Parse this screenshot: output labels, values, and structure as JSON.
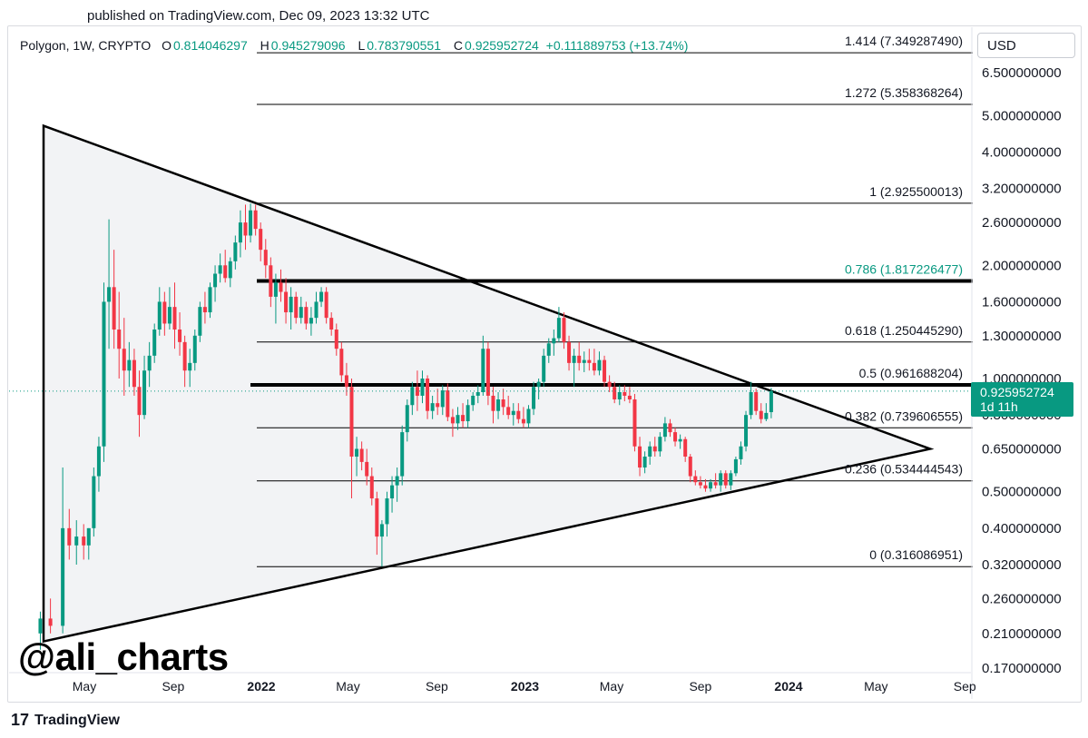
{
  "header": {
    "published": "published on TradingView.com, Dec 09, 2023 13:32 UTC"
  },
  "legend": {
    "symbol": "Polygon, 1W, CRYPTO",
    "open_label": "O",
    "open_value": "0.814046297",
    "high_label": "H",
    "high_value": "0.945279096",
    "low_label": "L",
    "low_value": "0.783790551",
    "close_label": "C",
    "close_value": "0.925952724",
    "change": "+0.111889753 (+13.74%)"
  },
  "currency_button": "USD",
  "current_price": {
    "value": "0.925952724",
    "countdown": "1d 11h"
  },
  "watermark": "@ali_charts",
  "footer": {
    "brand": "TradingView",
    "logo_glyph": "17"
  },
  "colors": {
    "up": "#089981",
    "down": "#f23645",
    "fib_highlight": "#089981",
    "triangle_fill": "#f2f3f5",
    "grid_text": "#131722"
  },
  "chart_data": {
    "type": "candlestick",
    "symbol": "Polygon, 1W, CRYPTO",
    "y_scale": "log",
    "ylim": [
      0.17,
      7.5
    ],
    "y_ticks": [
      "6.500000000",
      "5.000000000",
      "4.000000000",
      "3.200000000",
      "2.600000000",
      "2.000000000",
      "1.600000000",
      "1.300000000",
      "1.000000000",
      "0.800000000",
      "0.650000000",
      "0.500000000",
      "0.400000000",
      "0.320000000",
      "0.260000000",
      "0.210000000",
      "0.170000000"
    ],
    "x_ticks": [
      "May",
      "Sep",
      "2022",
      "May",
      "Sep",
      "2023",
      "May",
      "Sep",
      "2024",
      "May",
      "Sep"
    ],
    "x_range": [
      "2021-03",
      "2024-09"
    ],
    "fib_levels": [
      {
        "ratio": "1.414",
        "price": 7.34928749,
        "label": "1.414 (7.349287490)"
      },
      {
        "ratio": "1.272",
        "price": 5.358368264,
        "label": "1.272 (5.358368264)"
      },
      {
        "ratio": "1",
        "price": 2.925500013,
        "label": "1 (2.925500013)"
      },
      {
        "ratio": "0.786",
        "price": 1.817226477,
        "label": "0.786 (1.817226477)",
        "highlight": true
      },
      {
        "ratio": "0.618",
        "price": 1.25044529,
        "label": "0.618 (1.250445290)"
      },
      {
        "ratio": "0.5",
        "price": 0.961688204,
        "label": "0.5 (0.961688204)",
        "highlight_line": true
      },
      {
        "ratio": "0.382",
        "price": 0.739606555,
        "label": "0.382 (0.739606555)"
      },
      {
        "ratio": "0.236",
        "price": 0.534444543,
        "label": "0.236 (0.534444543)"
      },
      {
        "ratio": "0",
        "price": 0.316086951,
        "label": "0 (0.316086951)"
      }
    ],
    "triangle": {
      "apex_top": {
        "date": "2021-03",
        "price": 4.7
      },
      "apex_bottom": {
        "date": "2021-03",
        "price": 0.2
      },
      "apex_right": {
        "date": "2024-06",
        "price": 0.65
      }
    },
    "candles": [
      {
        "d": "2021-03-01",
        "o": 0.21,
        "h": 0.24,
        "l": 0.19,
        "c": 0.23
      },
      {
        "d": "2021-03-15",
        "o": 0.23,
        "h": 0.26,
        "l": 0.21,
        "c": 0.22
      },
      {
        "d": "2021-04-01",
        "o": 0.22,
        "h": 0.58,
        "l": 0.21,
        "c": 0.4
      },
      {
        "d": "2021-04-10",
        "o": 0.4,
        "h": 0.45,
        "l": 0.33,
        "c": 0.36
      },
      {
        "d": "2021-04-20",
        "o": 0.36,
        "h": 0.42,
        "l": 0.32,
        "c": 0.38
      },
      {
        "d": "2021-04-30",
        "o": 0.38,
        "h": 0.41,
        "l": 0.33,
        "c": 0.36
      },
      {
        "d": "2021-05-07",
        "o": 0.36,
        "h": 0.4,
        "l": 0.33,
        "c": 0.4
      },
      {
        "d": "2021-05-14",
        "o": 0.4,
        "h": 0.58,
        "l": 0.38,
        "c": 0.55
      },
      {
        "d": "2021-05-21",
        "o": 0.55,
        "h": 0.7,
        "l": 0.5,
        "c": 0.66
      },
      {
        "d": "2021-05-28",
        "o": 0.66,
        "h": 1.8,
        "l": 0.6,
        "c": 1.6
      },
      {
        "d": "2021-06-04",
        "o": 1.6,
        "h": 2.65,
        "l": 1.2,
        "c": 1.75
      },
      {
        "d": "2021-06-11",
        "o": 1.75,
        "h": 2.2,
        "l": 1.2,
        "c": 1.35
      },
      {
        "d": "2021-06-18",
        "o": 1.35,
        "h": 1.7,
        "l": 1.0,
        "c": 1.2
      },
      {
        "d": "2021-06-25",
        "o": 1.2,
        "h": 1.45,
        "l": 0.9,
        "c": 1.05
      },
      {
        "d": "2021-07-02",
        "o": 1.05,
        "h": 1.25,
        "l": 0.95,
        "c": 1.12
      },
      {
        "d": "2021-07-09",
        "o": 1.12,
        "h": 1.2,
        "l": 0.9,
        "c": 0.95
      },
      {
        "d": "2021-07-16",
        "o": 0.95,
        "h": 1.05,
        "l": 0.7,
        "c": 0.8
      },
      {
        "d": "2021-07-23",
        "o": 0.8,
        "h": 1.15,
        "l": 0.78,
        "c": 1.05
      },
      {
        "d": "2021-07-30",
        "o": 1.05,
        "h": 1.25,
        "l": 0.95,
        "c": 1.15
      },
      {
        "d": "2021-08-06",
        "o": 1.15,
        "h": 1.4,
        "l": 1.1,
        "c": 1.35
      },
      {
        "d": "2021-08-13",
        "o": 1.35,
        "h": 1.75,
        "l": 1.3,
        "c": 1.6
      },
      {
        "d": "2021-08-20",
        "o": 1.6,
        "h": 1.7,
        "l": 1.3,
        "c": 1.4
      },
      {
        "d": "2021-08-27",
        "o": 1.4,
        "h": 1.75,
        "l": 1.35,
        "c": 1.55
      },
      {
        "d": "2021-09-03",
        "o": 1.55,
        "h": 1.8,
        "l": 1.2,
        "c": 1.35
      },
      {
        "d": "2021-09-10",
        "o": 1.35,
        "h": 1.5,
        "l": 1.15,
        "c": 1.25
      },
      {
        "d": "2021-09-17",
        "o": 1.25,
        "h": 1.3,
        "l": 0.95,
        "c": 1.05
      },
      {
        "d": "2021-09-24",
        "o": 1.05,
        "h": 1.2,
        "l": 0.95,
        "c": 1.1
      },
      {
        "d": "2021-10-01",
        "o": 1.1,
        "h": 1.35,
        "l": 1.05,
        "c": 1.3
      },
      {
        "d": "2021-10-08",
        "o": 1.3,
        "h": 1.6,
        "l": 1.25,
        "c": 1.55
      },
      {
        "d": "2021-10-15",
        "o": 1.55,
        "h": 1.7,
        "l": 1.4,
        "c": 1.5
      },
      {
        "d": "2021-10-22",
        "o": 1.5,
        "h": 1.8,
        "l": 1.45,
        "c": 1.75
      },
      {
        "d": "2021-10-29",
        "o": 1.75,
        "h": 2.0,
        "l": 1.6,
        "c": 1.9
      },
      {
        "d": "2021-11-05",
        "o": 1.9,
        "h": 2.15,
        "l": 1.8,
        "c": 2.0
      },
      {
        "d": "2021-11-12",
        "o": 2.0,
        "h": 2.2,
        "l": 1.8,
        "c": 1.85
      },
      {
        "d": "2021-11-19",
        "o": 1.85,
        "h": 2.1,
        "l": 1.75,
        "c": 2.05
      },
      {
        "d": "2021-11-26",
        "o": 2.05,
        "h": 2.4,
        "l": 1.95,
        "c": 2.3
      },
      {
        "d": "2021-12-03",
        "o": 2.3,
        "h": 2.8,
        "l": 2.1,
        "c": 2.6
      },
      {
        "d": "2021-12-10",
        "o": 2.6,
        "h": 2.9,
        "l": 2.2,
        "c": 2.4
      },
      {
        "d": "2021-12-17",
        "o": 2.4,
        "h": 2.92,
        "l": 2.3,
        "c": 2.8
      },
      {
        "d": "2021-12-24",
        "o": 2.8,
        "h": 2.9,
        "l": 2.4,
        "c": 2.5
      },
      {
        "d": "2021-12-31",
        "o": 2.5,
        "h": 2.6,
        "l": 2.05,
        "c": 2.2
      },
      {
        "d": "2022-01-07",
        "o": 2.2,
        "h": 2.35,
        "l": 1.85,
        "c": 2.0
      },
      {
        "d": "2022-01-14",
        "o": 2.0,
        "h": 2.1,
        "l": 1.55,
        "c": 1.65
      },
      {
        "d": "2022-01-21",
        "o": 1.65,
        "h": 1.9,
        "l": 1.4,
        "c": 1.8
      },
      {
        "d": "2022-01-28",
        "o": 1.8,
        "h": 1.95,
        "l": 1.6,
        "c": 1.7
      },
      {
        "d": "2022-02-04",
        "o": 1.7,
        "h": 1.85,
        "l": 1.4,
        "c": 1.5
      },
      {
        "d": "2022-02-11",
        "o": 1.5,
        "h": 1.75,
        "l": 1.35,
        "c": 1.65
      },
      {
        "d": "2022-02-18",
        "o": 1.65,
        "h": 1.7,
        "l": 1.4,
        "c": 1.45
      },
      {
        "d": "2022-02-25",
        "o": 1.45,
        "h": 1.65,
        "l": 1.4,
        "c": 1.55
      },
      {
        "d": "2022-03-04",
        "o": 1.55,
        "h": 1.6,
        "l": 1.35,
        "c": 1.4
      },
      {
        "d": "2022-03-11",
        "o": 1.4,
        "h": 1.55,
        "l": 1.3,
        "c": 1.45
      },
      {
        "d": "2022-03-18",
        "o": 1.45,
        "h": 1.7,
        "l": 1.4,
        "c": 1.6
      },
      {
        "d": "2022-03-25",
        "o": 1.6,
        "h": 1.75,
        "l": 1.55,
        "c": 1.7
      },
      {
        "d": "2022-04-01",
        "o": 1.7,
        "h": 1.75,
        "l": 1.4,
        "c": 1.45
      },
      {
        "d": "2022-04-08",
        "o": 1.45,
        "h": 1.5,
        "l": 1.3,
        "c": 1.35
      },
      {
        "d": "2022-04-15",
        "o": 1.35,
        "h": 1.4,
        "l": 1.15,
        "c": 1.2
      },
      {
        "d": "2022-04-22",
        "o": 1.2,
        "h": 1.25,
        "l": 0.98,
        "c": 1.02
      },
      {
        "d": "2022-04-29",
        "o": 1.02,
        "h": 1.1,
        "l": 0.9,
        "c": 0.95
      },
      {
        "d": "2022-05-06",
        "o": 0.95,
        "h": 1.0,
        "l": 0.48,
        "c": 0.62
      },
      {
        "d": "2022-05-13",
        "o": 0.62,
        "h": 0.7,
        "l": 0.55,
        "c": 0.65
      },
      {
        "d": "2022-05-20",
        "o": 0.65,
        "h": 0.68,
        "l": 0.57,
        "c": 0.6
      },
      {
        "d": "2022-05-27",
        "o": 0.6,
        "h": 0.65,
        "l": 0.52,
        "c": 0.55
      },
      {
        "d": "2022-06-03",
        "o": 0.55,
        "h": 0.58,
        "l": 0.46,
        "c": 0.48
      },
      {
        "d": "2022-06-10",
        "o": 0.48,
        "h": 0.5,
        "l": 0.34,
        "c": 0.38
      },
      {
        "d": "2022-06-17",
        "o": 0.38,
        "h": 0.42,
        "l": 0.316,
        "c": 0.41
      },
      {
        "d": "2022-06-24",
        "o": 0.41,
        "h": 0.5,
        "l": 0.38,
        "c": 0.48
      },
      {
        "d": "2022-07-01",
        "o": 0.48,
        "h": 0.55,
        "l": 0.44,
        "c": 0.52
      },
      {
        "d": "2022-07-08",
        "o": 0.52,
        "h": 0.58,
        "l": 0.47,
        "c": 0.55
      },
      {
        "d": "2022-07-15",
        "o": 0.55,
        "h": 0.75,
        "l": 0.52,
        "c": 0.72
      },
      {
        "d": "2022-07-22",
        "o": 0.72,
        "h": 0.88,
        "l": 0.68,
        "c": 0.85
      },
      {
        "d": "2022-07-29",
        "o": 0.85,
        "h": 0.98,
        "l": 0.8,
        "c": 0.95
      },
      {
        "d": "2022-08-05",
        "o": 0.95,
        "h": 1.05,
        "l": 0.82,
        "c": 0.9
      },
      {
        "d": "2022-08-12",
        "o": 0.9,
        "h": 1.05,
        "l": 0.86,
        "c": 1.0
      },
      {
        "d": "2022-08-19",
        "o": 1.0,
        "h": 1.02,
        "l": 0.78,
        "c": 0.82
      },
      {
        "d": "2022-08-26",
        "o": 0.82,
        "h": 0.9,
        "l": 0.78,
        "c": 0.86
      },
      {
        "d": "2022-09-02",
        "o": 0.86,
        "h": 0.94,
        "l": 0.8,
        "c": 0.84
      },
      {
        "d": "2022-09-09",
        "o": 0.84,
        "h": 0.96,
        "l": 0.8,
        "c": 0.93
      },
      {
        "d": "2022-09-16",
        "o": 0.93,
        "h": 0.97,
        "l": 0.77,
        "c": 0.79
      },
      {
        "d": "2022-09-23",
        "o": 0.79,
        "h": 0.83,
        "l": 0.7,
        "c": 0.76
      },
      {
        "d": "2022-09-30",
        "o": 0.76,
        "h": 0.84,
        "l": 0.73,
        "c": 0.8
      },
      {
        "d": "2022-10-07",
        "o": 0.8,
        "h": 0.86,
        "l": 0.74,
        "c": 0.77
      },
      {
        "d": "2022-10-14",
        "o": 0.77,
        "h": 0.88,
        "l": 0.74,
        "c": 0.85
      },
      {
        "d": "2022-10-21",
        "o": 0.85,
        "h": 0.92,
        "l": 0.82,
        "c": 0.9
      },
      {
        "d": "2022-10-28",
        "o": 0.9,
        "h": 0.96,
        "l": 0.86,
        "c": 0.92
      },
      {
        "d": "2022-11-04",
        "o": 0.92,
        "h": 1.3,
        "l": 0.9,
        "c": 1.2
      },
      {
        "d": "2022-11-11",
        "o": 1.2,
        "h": 1.25,
        "l": 0.85,
        "c": 0.9
      },
      {
        "d": "2022-11-18",
        "o": 0.9,
        "h": 0.95,
        "l": 0.76,
        "c": 0.82
      },
      {
        "d": "2022-11-25",
        "o": 0.82,
        "h": 0.92,
        "l": 0.78,
        "c": 0.88
      },
      {
        "d": "2022-12-02",
        "o": 0.88,
        "h": 0.94,
        "l": 0.8,
        "c": 0.84
      },
      {
        "d": "2022-12-09",
        "o": 0.84,
        "h": 0.9,
        "l": 0.78,
        "c": 0.8
      },
      {
        "d": "2022-12-16",
        "o": 0.8,
        "h": 0.86,
        "l": 0.75,
        "c": 0.82
      },
      {
        "d": "2022-12-23",
        "o": 0.82,
        "h": 0.86,
        "l": 0.76,
        "c": 0.78
      },
      {
        "d": "2022-12-30",
        "o": 0.78,
        "h": 0.84,
        "l": 0.74,
        "c": 0.76
      },
      {
        "d": "2023-01-06",
        "o": 0.76,
        "h": 0.85,
        "l": 0.74,
        "c": 0.83
      },
      {
        "d": "2023-01-13",
        "o": 0.83,
        "h": 0.98,
        "l": 0.8,
        "c": 0.95
      },
      {
        "d": "2023-01-20",
        "o": 0.95,
        "h": 1.0,
        "l": 0.88,
        "c": 0.98
      },
      {
        "d": "2023-01-27",
        "o": 0.98,
        "h": 1.2,
        "l": 0.95,
        "c": 1.15
      },
      {
        "d": "2023-02-03",
        "o": 1.15,
        "h": 1.28,
        "l": 1.1,
        "c": 1.24
      },
      {
        "d": "2023-02-10",
        "o": 1.24,
        "h": 1.35,
        "l": 1.15,
        "c": 1.28
      },
      {
        "d": "2023-02-17",
        "o": 1.28,
        "h": 1.55,
        "l": 1.25,
        "c": 1.45
      },
      {
        "d": "2023-02-24",
        "o": 1.45,
        "h": 1.5,
        "l": 1.2,
        "c": 1.25
      },
      {
        "d": "2023-03-03",
        "o": 1.25,
        "h": 1.3,
        "l": 1.05,
        "c": 1.1
      },
      {
        "d": "2023-03-10",
        "o": 1.1,
        "h": 1.2,
        "l": 0.95,
        "c": 1.15
      },
      {
        "d": "2023-03-17",
        "o": 1.15,
        "h": 1.25,
        "l": 1.05,
        "c": 1.1
      },
      {
        "d": "2023-03-24",
        "o": 1.1,
        "h": 1.18,
        "l": 1.04,
        "c": 1.12
      },
      {
        "d": "2023-03-31",
        "o": 1.12,
        "h": 1.2,
        "l": 1.05,
        "c": 1.1
      },
      {
        "d": "2023-04-07",
        "o": 1.1,
        "h": 1.2,
        "l": 1.02,
        "c": 1.05
      },
      {
        "d": "2023-04-14",
        "o": 1.05,
        "h": 1.18,
        "l": 1.02,
        "c": 1.12
      },
      {
        "d": "2023-04-21",
        "o": 1.12,
        "h": 1.15,
        "l": 0.95,
        "c": 0.98
      },
      {
        "d": "2023-04-28",
        "o": 0.98,
        "h": 1.02,
        "l": 0.92,
        "c": 0.95
      },
      {
        "d": "2023-05-05",
        "o": 0.95,
        "h": 0.98,
        "l": 0.86,
        "c": 0.88
      },
      {
        "d": "2023-05-12",
        "o": 0.88,
        "h": 0.96,
        "l": 0.85,
        "c": 0.92
      },
      {
        "d": "2023-05-19",
        "o": 0.92,
        "h": 0.96,
        "l": 0.87,
        "c": 0.9
      },
      {
        "d": "2023-05-26",
        "o": 0.9,
        "h": 0.95,
        "l": 0.86,
        "c": 0.88
      },
      {
        "d": "2023-06-02",
        "o": 0.88,
        "h": 0.91,
        "l": 0.64,
        "c": 0.66
      },
      {
        "d": "2023-06-09",
        "o": 0.66,
        "h": 0.7,
        "l": 0.55,
        "c": 0.58
      },
      {
        "d": "2023-06-16",
        "o": 0.58,
        "h": 0.64,
        "l": 0.56,
        "c": 0.62
      },
      {
        "d": "2023-06-23",
        "o": 0.62,
        "h": 0.68,
        "l": 0.59,
        "c": 0.66
      },
      {
        "d": "2023-06-30",
        "o": 0.66,
        "h": 0.7,
        "l": 0.62,
        "c": 0.64
      },
      {
        "d": "2023-07-07",
        "o": 0.64,
        "h": 0.72,
        "l": 0.62,
        "c": 0.7
      },
      {
        "d": "2023-07-14",
        "o": 0.7,
        "h": 0.79,
        "l": 0.68,
        "c": 0.76
      },
      {
        "d": "2023-07-21",
        "o": 0.76,
        "h": 0.78,
        "l": 0.7,
        "c": 0.72
      },
      {
        "d": "2023-07-28",
        "o": 0.72,
        "h": 0.74,
        "l": 0.66,
        "c": 0.68
      },
      {
        "d": "2023-08-04",
        "o": 0.68,
        "h": 0.71,
        "l": 0.65,
        "c": 0.69
      },
      {
        "d": "2023-08-11",
        "o": 0.69,
        "h": 0.7,
        "l": 0.6,
        "c": 0.62
      },
      {
        "d": "2023-08-18",
        "o": 0.62,
        "h": 0.63,
        "l": 0.53,
        "c": 0.55
      },
      {
        "d": "2023-08-25",
        "o": 0.55,
        "h": 0.57,
        "l": 0.52,
        "c": 0.53
      },
      {
        "d": "2023-09-01",
        "o": 0.53,
        "h": 0.55,
        "l": 0.51,
        "c": 0.52
      },
      {
        "d": "2023-09-08",
        "o": 0.52,
        "h": 0.54,
        "l": 0.5,
        "c": 0.51
      },
      {
        "d": "2023-09-15",
        "o": 0.51,
        "h": 0.54,
        "l": 0.5,
        "c": 0.53
      },
      {
        "d": "2023-09-22",
        "o": 0.53,
        "h": 0.56,
        "l": 0.51,
        "c": 0.52
      },
      {
        "d": "2023-09-29",
        "o": 0.52,
        "h": 0.57,
        "l": 0.5,
        "c": 0.56
      },
      {
        "d": "2023-10-06",
        "o": 0.56,
        "h": 0.57,
        "l": 0.51,
        "c": 0.52
      },
      {
        "d": "2023-10-13",
        "o": 0.52,
        "h": 0.57,
        "l": 0.505,
        "c": 0.56
      },
      {
        "d": "2023-10-20",
        "o": 0.56,
        "h": 0.62,
        "l": 0.55,
        "c": 0.61
      },
      {
        "d": "2023-10-27",
        "o": 0.61,
        "h": 0.68,
        "l": 0.59,
        "c": 0.66
      },
      {
        "d": "2023-11-03",
        "o": 0.66,
        "h": 0.82,
        "l": 0.64,
        "c": 0.8
      },
      {
        "d": "2023-11-10",
        "o": 0.8,
        "h": 0.98,
        "l": 0.78,
        "c": 0.92
      },
      {
        "d": "2023-11-17",
        "o": 0.92,
        "h": 0.94,
        "l": 0.8,
        "c": 0.82
      },
      {
        "d": "2023-11-24",
        "o": 0.82,
        "h": 0.86,
        "l": 0.76,
        "c": 0.78
      },
      {
        "d": "2023-12-01",
        "o": 0.78,
        "h": 0.86,
        "l": 0.77,
        "c": 0.81
      },
      {
        "d": "2023-12-08",
        "o": 0.814,
        "h": 0.945,
        "l": 0.784,
        "c": 0.926
      }
    ]
  }
}
